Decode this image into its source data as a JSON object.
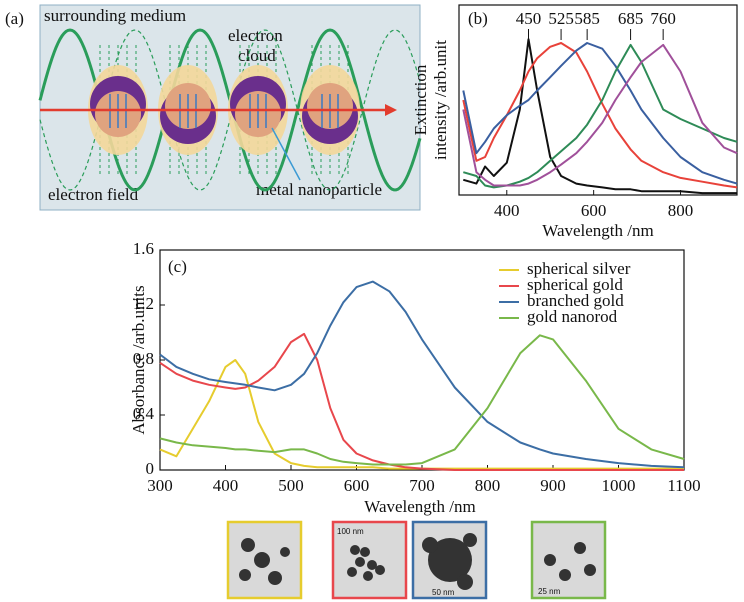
{
  "panel_a": {
    "label": "(a)",
    "texts": [
      "surrounding medium",
      "electron",
      "cloud",
      "electron field",
      "metal nanoparticle"
    ]
  },
  "chart_data": [
    {
      "type": "line",
      "panel_label": "(b)",
      "xlabel": "Wavelength /nm",
      "ylabel": [
        "Extinction",
        "intensity /arb.unit"
      ],
      "x": [
        300,
        330,
        350,
        370,
        400,
        430,
        450,
        470,
        500,
        525,
        560,
        585,
        620,
        650,
        685,
        710,
        760,
        800,
        850,
        900,
        930
      ],
      "xlim": [
        290,
        930
      ],
      "ylim": [
        0,
        1
      ],
      "xticks": [
        400,
        600,
        800
      ],
      "peak_labels": [
        450,
        525,
        585,
        685,
        760
      ],
      "series": [
        {
          "color": "#111111",
          "values": [
            0.08,
            0.06,
            0.15,
            0.1,
            0.17,
            0.45,
            0.82,
            0.55,
            0.2,
            0.1,
            0.06,
            0.05,
            0.04,
            0.03,
            0.03,
            0.02,
            0.02,
            0.02,
            0.01,
            0.01,
            0.01
          ]
        },
        {
          "color": "#e8423a",
          "values": [
            0.5,
            0.18,
            0.2,
            0.3,
            0.42,
            0.55,
            0.65,
            0.72,
            0.78,
            0.8,
            0.75,
            0.65,
            0.48,
            0.35,
            0.24,
            0.18,
            0.12,
            0.09,
            0.07,
            0.05,
            0.04
          ]
        },
        {
          "color": "#3a5fa0",
          "values": [
            0.55,
            0.22,
            0.28,
            0.35,
            0.42,
            0.47,
            0.5,
            0.55,
            0.62,
            0.68,
            0.76,
            0.8,
            0.77,
            0.68,
            0.55,
            0.45,
            0.3,
            0.2,
            0.12,
            0.08,
            0.06
          ]
        },
        {
          "color": "#2e8b57",
          "values": [
            0.12,
            0.1,
            0.05,
            0.04,
            0.05,
            0.07,
            0.09,
            0.12,
            0.18,
            0.23,
            0.3,
            0.37,
            0.5,
            0.65,
            0.79,
            0.7,
            0.45,
            0.4,
            0.35,
            0.3,
            0.28
          ]
        },
        {
          "color": "#a0509a",
          "values": [
            0.45,
            0.12,
            0.08,
            0.05,
            0.05,
            0.05,
            0.06,
            0.08,
            0.12,
            0.16,
            0.22,
            0.28,
            0.38,
            0.5,
            0.62,
            0.7,
            0.79,
            0.65,
            0.38,
            0.25,
            0.22
          ]
        }
      ]
    },
    {
      "type": "line",
      "panel_label": "(c)",
      "xlabel": "Wavelength /nm",
      "ylabel": [
        "Absorbance /arb.units"
      ],
      "x": [
        300,
        325,
        350,
        375,
        400,
        415,
        430,
        450,
        475,
        500,
        520,
        540,
        560,
        580,
        600,
        625,
        650,
        675,
        700,
        750,
        800,
        850,
        880,
        900,
        950,
        1000,
        1050,
        1100
      ],
      "xlim": [
        300,
        1100
      ],
      "ylim": [
        0,
        1.6
      ],
      "xticks": [
        300,
        400,
        500,
        600,
        700,
        800,
        900,
        1000,
        1100
      ],
      "yticks": [
        0,
        0.4,
        0.8,
        1.2,
        1.6
      ],
      "legend": "upper right",
      "series": [
        {
          "name": "spherical silver",
          "color": "#e6cc2e",
          "values": [
            0.15,
            0.1,
            0.3,
            0.5,
            0.75,
            0.8,
            0.7,
            0.35,
            0.12,
            0.05,
            0.03,
            0.02,
            0.02,
            0.02,
            0.02,
            0.02,
            0.01,
            0.01,
            0.01,
            0.01,
            0.01,
            0.01,
            0.01,
            0.01,
            0.01,
            0.01,
            0.01,
            0.01
          ]
        },
        {
          "name": "spherical gold",
          "color": "#e8474c",
          "values": [
            0.78,
            0.7,
            0.65,
            0.62,
            0.6,
            0.59,
            0.6,
            0.65,
            0.75,
            0.93,
            0.99,
            0.8,
            0.45,
            0.22,
            0.12,
            0.07,
            0.04,
            0.02,
            0.01,
            0,
            0,
            0,
            0,
            0,
            0,
            0,
            0,
            0
          ]
        },
        {
          "name": "branched gold",
          "color": "#3c6ea5",
          "values": [
            0.84,
            0.75,
            0.7,
            0.66,
            0.64,
            0.63,
            0.62,
            0.6,
            0.58,
            0.62,
            0.7,
            0.85,
            1.05,
            1.22,
            1.33,
            1.37,
            1.3,
            1.15,
            0.95,
            0.6,
            0.35,
            0.2,
            0.15,
            0.12,
            0.08,
            0.05,
            0.03,
            0.02
          ]
        },
        {
          "name": "gold nanorod",
          "color": "#79b84a",
          "values": [
            0.23,
            0.2,
            0.18,
            0.17,
            0.16,
            0.15,
            0.15,
            0.14,
            0.13,
            0.15,
            0.15,
            0.12,
            0.08,
            0.06,
            0.05,
            0.04,
            0.04,
            0.04,
            0.05,
            0.15,
            0.45,
            0.85,
            0.98,
            0.95,
            0.65,
            0.3,
            0.15,
            0.08
          ]
        }
      ]
    }
  ],
  "tem_labels": [
    "100 nm",
    "50 nm",
    "25 nm"
  ]
}
